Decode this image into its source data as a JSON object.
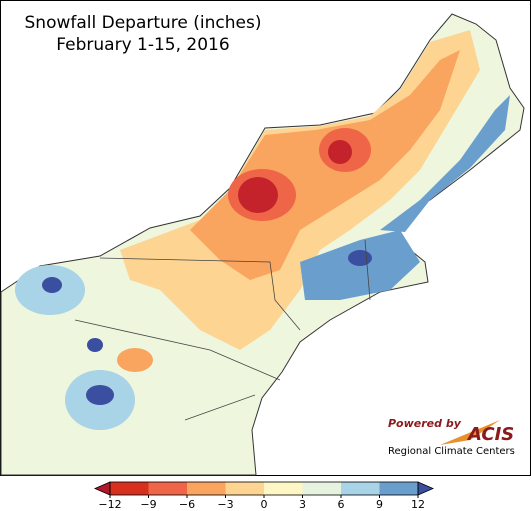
{
  "title": [
    "Snowfall Departure (inches)",
    "February 1-15, 2016"
  ],
  "legend": {
    "ticks": [
      {
        "value": -12,
        "label": "−12"
      },
      {
        "value": -9,
        "label": "−9"
      },
      {
        "value": -6,
        "label": "−6"
      },
      {
        "value": -3,
        "label": "−3"
      },
      0,
      3,
      6,
      9,
      12
    ],
    "colors": [
      "#d7301f",
      "#ef6548",
      "#f9a45f",
      "#fdd492",
      "#fef6c5",
      "#e6f3df",
      "#a9d3e6",
      "#6a9ecd"
    ],
    "under_color": "#b2182b",
    "over_color": "#3a4fa0"
  },
  "logo": {
    "powered_by": "Powered by",
    "name": "ACIS",
    "org": "Regional Climate Centers"
  }
}
